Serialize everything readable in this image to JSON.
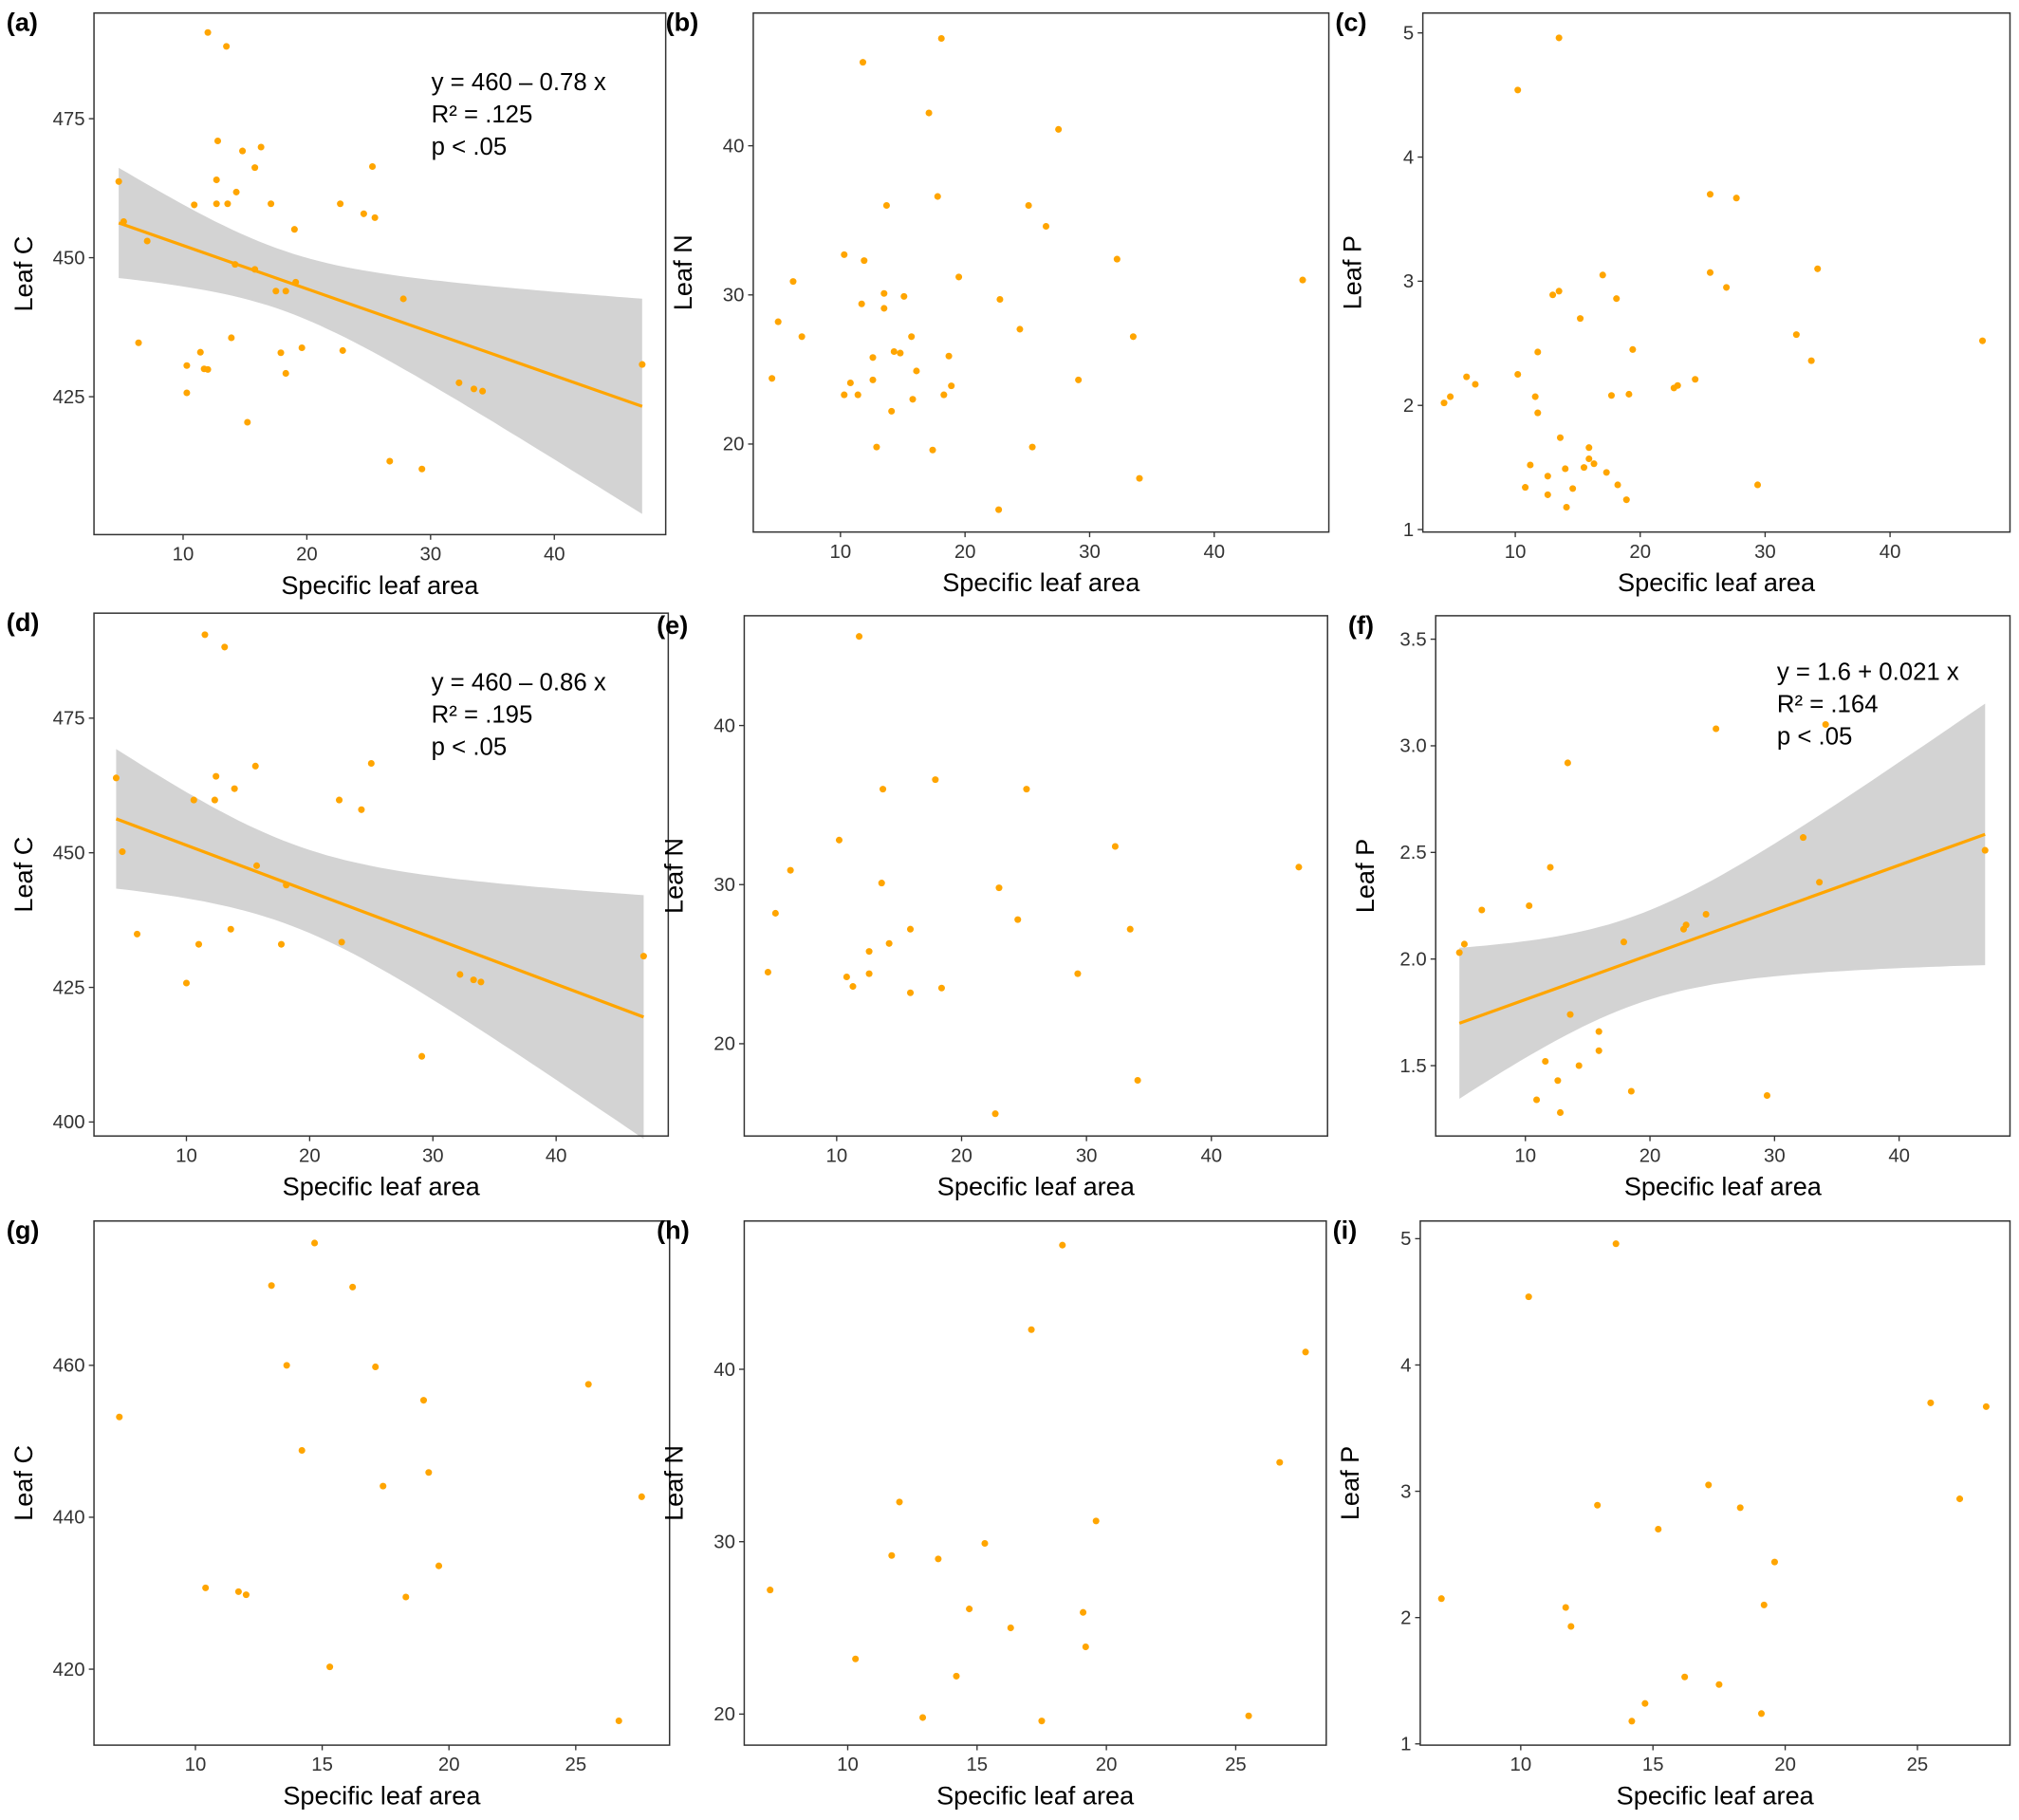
{
  "chart_data": [
    {
      "panel_label": "(a)",
      "type": "scatter",
      "xlabel": "Specific leaf area",
      "ylabel": "Leaf C",
      "xlim": [
        2.8,
        49
      ],
      "ylim": [
        400.2,
        494
      ],
      "xticks": [
        "10",
        "20",
        "30",
        "40"
      ],
      "yticks": [
        "425",
        "450",
        "475"
      ],
      "grid": false,
      "point_color": "#FFA500",
      "fit": {
        "intercept": 460,
        "slope": -0.78,
        "line_color": "#FFA500",
        "band_color": "#D3D3D3",
        "annotation": [
          "y = 460 – 0.78 x",
          "R² = .125",
          "p < .05"
        ]
      },
      "points": [
        [
          4.8,
          463.7
        ],
        [
          5.2,
          456.5
        ],
        [
          7.1,
          453
        ],
        [
          6.4,
          434.7
        ],
        [
          10.3,
          430.6
        ],
        [
          10.3,
          425.7
        ],
        [
          10.9,
          459.5
        ],
        [
          11.4,
          433
        ],
        [
          11.7,
          430
        ],
        [
          12,
          429.9
        ],
        [
          12,
          490.5
        ],
        [
          13.5,
          488
        ],
        [
          12.8,
          471
        ],
        [
          12.7,
          464
        ],
        [
          12.7,
          459.7
        ],
        [
          13.6,
          459.7
        ],
        [
          14.3,
          461.8
        ],
        [
          13.9,
          435.6
        ],
        [
          14.2,
          448.8
        ],
        [
          14.8,
          469.2
        ],
        [
          15.2,
          420.4
        ],
        [
          15.8,
          466.2
        ],
        [
          16.3,
          469.9
        ],
        [
          15.8,
          447.9
        ],
        [
          17.1,
          459.7
        ],
        [
          17.5,
          444
        ],
        [
          18.3,
          444
        ],
        [
          17.9,
          432.9
        ],
        [
          18.3,
          429.2
        ],
        [
          19,
          455.1
        ],
        [
          19.1,
          445.6
        ],
        [
          19.6,
          433.8
        ],
        [
          22.7,
          459.7
        ],
        [
          22.9,
          433.3
        ],
        [
          24.6,
          457.9
        ],
        [
          25.3,
          466.4
        ],
        [
          25.5,
          457.2
        ],
        [
          26.7,
          413.4
        ],
        [
          27.8,
          442.6
        ],
        [
          29.3,
          412
        ],
        [
          32.3,
          427.5
        ],
        [
          33.5,
          426.4
        ],
        [
          34.2,
          426
        ],
        [
          47.1,
          430.8
        ]
      ]
    },
    {
      "panel_label": "(b)",
      "type": "scatter",
      "xlabel": "Specific leaf area",
      "ylabel": "Leaf N",
      "xlim": [
        3,
        49.2
      ],
      "ylim": [
        14.1,
        48.9
      ],
      "xticks": [
        "10",
        "20",
        "30",
        "40"
      ],
      "yticks": [
        "20",
        "30",
        "40"
      ],
      "grid": false,
      "point_color": "#FFA500",
      "points": [
        [
          4.5,
          24.4
        ],
        [
          5,
          28.2
        ],
        [
          6.2,
          30.9
        ],
        [
          6.9,
          27.2
        ],
        [
          10.3,
          32.7
        ],
        [
          10.3,
          23.3
        ],
        [
          10.8,
          24.1
        ],
        [
          11.4,
          23.3
        ],
        [
          11.7,
          29.4
        ],
        [
          11.9,
          32.3
        ],
        [
          11.8,
          45.6
        ],
        [
          12.6,
          25.8
        ],
        [
          12.6,
          24.3
        ],
        [
          12.9,
          19.8
        ],
        [
          13.5,
          30.1
        ],
        [
          13.5,
          29.1
        ],
        [
          13.7,
          36
        ],
        [
          14.1,
          22.2
        ],
        [
          14.3,
          26.2
        ],
        [
          14.8,
          26.1
        ],
        [
          15.1,
          29.9
        ],
        [
          15.7,
          27.2
        ],
        [
          15.8,
          23
        ],
        [
          16.1,
          24.9
        ],
        [
          17.1,
          42.2
        ],
        [
          17.4,
          19.6
        ],
        [
          17.8,
          36.6
        ],
        [
          18.1,
          47.2
        ],
        [
          18.3,
          23.3
        ],
        [
          18.7,
          25.9
        ],
        [
          18.9,
          23.9
        ],
        [
          19.5,
          31.2
        ],
        [
          22.8,
          29.7
        ],
        [
          22.7,
          15.6
        ],
        [
          24.4,
          27.7
        ],
        [
          25.1,
          36
        ],
        [
          25.4,
          19.8
        ],
        [
          26.5,
          34.6
        ],
        [
          27.5,
          41.1
        ],
        [
          29.1,
          24.3
        ],
        [
          32.2,
          32.4
        ],
        [
          33.5,
          27.2
        ],
        [
          34,
          17.7
        ],
        [
          47.1,
          31
        ]
      ]
    },
    {
      "panel_label": "(c)",
      "type": "scatter",
      "xlabel": "Specific leaf area",
      "ylabel": "Leaf P",
      "xlim": [
        2.6,
        49.6
      ],
      "ylim": [
        0.98,
        5.16
      ],
      "xticks": [
        "10",
        "20",
        "30",
        "40"
      ],
      "yticks": [
        "1",
        "2",
        "3",
        "4",
        "5"
      ],
      "grid": false,
      "point_color": "#FFA500",
      "points": [
        [
          4.3,
          2.02
        ],
        [
          4.8,
          2.07
        ],
        [
          6.1,
          2.23
        ],
        [
          6.8,
          2.17
        ],
        [
          10.2,
          2.25
        ],
        [
          10.8,
          1.34
        ],
        [
          10.2,
          4.54
        ],
        [
          11.2,
          1.52
        ],
        [
          11.6,
          2.07
        ],
        [
          11.8,
          2.43
        ],
        [
          11.8,
          1.94
        ],
        [
          12.6,
          1.43
        ],
        [
          12.6,
          1.28
        ],
        [
          13,
          2.89
        ],
        [
          13.5,
          2.92
        ],
        [
          13.6,
          1.74
        ],
        [
          13.5,
          4.96
        ],
        [
          14,
          1.49
        ],
        [
          14.1,
          1.18
        ],
        [
          14.6,
          1.33
        ],
        [
          15.2,
          2.7
        ],
        [
          15.5,
          1.5
        ],
        [
          15.9,
          1.66
        ],
        [
          15.9,
          1.57
        ],
        [
          16.3,
          1.53
        ],
        [
          17,
          3.05
        ],
        [
          17.3,
          1.46
        ],
        [
          17.7,
          2.08
        ],
        [
          18.1,
          2.86
        ],
        [
          18.2,
          1.36
        ],
        [
          18.9,
          1.24
        ],
        [
          19.1,
          2.09
        ],
        [
          19.4,
          2.45
        ],
        [
          22.7,
          2.14
        ],
        [
          23,
          2.16
        ],
        [
          24.4,
          2.21
        ],
        [
          25.6,
          3.07
        ],
        [
          25.6,
          3.7
        ],
        [
          26.9,
          2.95
        ],
        [
          27.7,
          3.67
        ],
        [
          29.4,
          1.36
        ],
        [
          32.5,
          2.57
        ],
        [
          33.7,
          2.36
        ],
        [
          34.2,
          3.1
        ],
        [
          47.4,
          2.52
        ]
      ]
    },
    {
      "panel_label": "(d)",
      "type": "scatter",
      "xlabel": "Specific leaf area",
      "ylabel": "Leaf C",
      "xlim": [
        2.5,
        49.1
      ],
      "ylim": [
        397.4,
        494.5
      ],
      "xticks": [
        "10",
        "20",
        "30",
        "40"
      ],
      "yticks": [
        "400",
        "425",
        "450",
        "475"
      ],
      "grid": false,
      "point_color": "#FFA500",
      "fit": {
        "intercept": 460,
        "slope": -0.86,
        "line_color": "#FFA500",
        "band_color": "#D3D3D3",
        "annotation": [
          "y = 460 – 0.86 x",
          "R² = .195",
          "p < .05"
        ]
      },
      "points": [
        [
          4.3,
          463.9
        ],
        [
          4.8,
          450.2
        ],
        [
          6,
          434.9
        ],
        [
          10,
          425.8
        ],
        [
          10.6,
          459.8
        ],
        [
          11,
          433
        ],
        [
          11.5,
          490.5
        ],
        [
          12.4,
          464.2
        ],
        [
          12.3,
          459.8
        ],
        [
          13.1,
          488.2
        ],
        [
          13.6,
          435.8
        ],
        [
          13.9,
          461.9
        ],
        [
          15.6,
          466.1
        ],
        [
          15.7,
          447.6
        ],
        [
          18.1,
          444
        ],
        [
          17.7,
          433
        ],
        [
          22.4,
          459.8
        ],
        [
          22.6,
          433.4
        ],
        [
          24.2,
          458
        ],
        [
          25,
          466.6
        ],
        [
          29.1,
          412.2
        ],
        [
          32.2,
          427.4
        ],
        [
          33.3,
          426.4
        ],
        [
          33.9,
          426
        ],
        [
          47.1,
          430.8
        ]
      ]
    },
    {
      "panel_label": "(e)",
      "type": "scatter",
      "xlabel": "Specific leaf area",
      "ylabel": "Leaf N",
      "xlim": [
        2.6,
        49.3
      ],
      "ylim": [
        14.2,
        46.9
      ],
      "xticks": [
        "10",
        "20",
        "30",
        "40"
      ],
      "yticks": [
        "20",
        "30",
        "40"
      ],
      "grid": false,
      "point_color": "#FFA500",
      "points": [
        [
          4.5,
          24.5
        ],
        [
          5.1,
          28.2
        ],
        [
          6.3,
          30.9
        ],
        [
          10.2,
          32.8
        ],
        [
          10.8,
          24.2
        ],
        [
          11.3,
          23.6
        ],
        [
          11.8,
          45.6
        ],
        [
          12.6,
          25.8
        ],
        [
          12.6,
          24.4
        ],
        [
          13.6,
          30.1
        ],
        [
          13.7,
          36
        ],
        [
          14.2,
          26.3
        ],
        [
          15.9,
          27.2
        ],
        [
          15.9,
          23.2
        ],
        [
          17.9,
          36.6
        ],
        [
          18.4,
          23.5
        ],
        [
          23,
          29.8
        ],
        [
          22.7,
          15.6
        ],
        [
          24.5,
          27.8
        ],
        [
          25.2,
          36
        ],
        [
          29.3,
          24.4
        ],
        [
          32.3,
          32.4
        ],
        [
          33.5,
          27.2
        ],
        [
          34.1,
          17.7
        ],
        [
          47,
          31.1
        ]
      ]
    },
    {
      "panel_label": "(f)",
      "type": "scatter",
      "xlabel": "Specific leaf area",
      "ylabel": "Leaf P",
      "xlim": [
        2.8,
        48.9
      ],
      "ylim": [
        1.17,
        3.61
      ],
      "xticks": [
        "10",
        "20",
        "30",
        "40"
      ],
      "yticks": [
        "1.5",
        "2.0",
        "2.5",
        "3.0",
        "3.5"
      ],
      "grid": false,
      "point_color": "#FFA500",
      "fit": {
        "intercept": 1.6,
        "slope": 0.021,
        "line_color": "#FFA500",
        "band_color": "#D3D3D3",
        "annotation": [
          "y = 1.6 + 0.021 x",
          "R² = .164",
          "p < .05"
        ]
      },
      "points": [
        [
          4.7,
          2.03
        ],
        [
          5.1,
          2.07
        ],
        [
          6.5,
          2.23
        ],
        [
          10.3,
          2.25
        ],
        [
          10.9,
          1.34
        ],
        [
          11.6,
          1.52
        ],
        [
          12,
          2.43
        ],
        [
          12.6,
          1.43
        ],
        [
          12.8,
          1.28
        ],
        [
          13.4,
          2.92
        ],
        [
          13.6,
          1.74
        ],
        [
          14.3,
          1.5
        ],
        [
          15.9,
          1.66
        ],
        [
          15.9,
          1.57
        ],
        [
          17.9,
          2.08
        ],
        [
          18.5,
          1.38
        ],
        [
          22.7,
          2.14
        ],
        [
          22.9,
          2.16
        ],
        [
          24.5,
          2.21
        ],
        [
          25.3,
          3.08
        ],
        [
          29.4,
          1.36
        ],
        [
          32.3,
          2.57
        ],
        [
          33.6,
          2.36
        ],
        [
          34.1,
          3.1
        ],
        [
          46.9,
          2.51
        ]
      ]
    },
    {
      "panel_label": "(g)",
      "type": "scatter",
      "xlabel": "Specific leaf area",
      "ylabel": "Leaf C",
      "xlim": [
        6,
        28.7
      ],
      "ylim": [
        410,
        479
      ],
      "xticks": [
        "10",
        "15",
        "20",
        "25"
      ],
      "yticks": [
        "420",
        "440",
        "460"
      ],
      "grid": false,
      "point_color": "#FFA500",
      "points": [
        [
          7,
          453.2
        ],
        [
          10.4,
          430.7
        ],
        [
          11.7,
          430.2
        ],
        [
          12,
          429.8
        ],
        [
          13,
          470.5
        ],
        [
          13.6,
          460
        ],
        [
          14.2,
          448.8
        ],
        [
          14.7,
          476.1
        ],
        [
          15.3,
          420.3
        ],
        [
          16.2,
          470.3
        ],
        [
          17.1,
          459.8
        ],
        [
          17.4,
          444.1
        ],
        [
          18.3,
          429.5
        ],
        [
          19,
          455.4
        ],
        [
          19.2,
          445.9
        ],
        [
          19.6,
          433.6
        ],
        [
          25.5,
          457.5
        ],
        [
          26.7,
          413.2
        ],
        [
          27.6,
          442.7
        ]
      ]
    },
    {
      "panel_label": "(h)",
      "type": "scatter",
      "xlabel": "Specific leaf area",
      "ylabel": "Leaf N",
      "xlim": [
        6,
        28.5
      ],
      "ylim": [
        18.2,
        48.6
      ],
      "xticks": [
        "10",
        "15",
        "20",
        "25"
      ],
      "yticks": [
        "20",
        "30",
        "40"
      ],
      "grid": false,
      "point_color": "#FFA500",
      "points": [
        [
          7,
          27.2
        ],
        [
          10.3,
          23.2
        ],
        [
          11.7,
          29.2
        ],
        [
          12,
          32.3
        ],
        [
          12.9,
          19.8
        ],
        [
          13.5,
          29
        ],
        [
          14.2,
          22.2
        ],
        [
          14.7,
          26.1
        ],
        [
          15.3,
          29.9
        ],
        [
          16.3,
          25
        ],
        [
          17.1,
          42.3
        ],
        [
          17.5,
          19.6
        ],
        [
          18.3,
          47.2
        ],
        [
          19.1,
          25.9
        ],
        [
          19.2,
          23.9
        ],
        [
          19.6,
          31.2
        ],
        [
          25.5,
          19.9
        ],
        [
          26.7,
          34.6
        ],
        [
          27.7,
          41
        ]
      ]
    },
    {
      "panel_label": "(i)",
      "type": "scatter",
      "xlabel": "Specific leaf area",
      "ylabel": "Leaf P",
      "xlim": [
        6.2,
        28.5
      ],
      "ylim": [
        0.99,
        5.14
      ],
      "xticks": [
        "10",
        "15",
        "20",
        "25"
      ],
      "yticks": [
        "1",
        "2",
        "3",
        "4",
        "5"
      ],
      "grid": false,
      "point_color": "#FFA500",
      "points": [
        [
          7,
          2.15
        ],
        [
          10.3,
          4.54
        ],
        [
          11.7,
          2.08
        ],
        [
          11.9,
          1.93
        ],
        [
          12.9,
          2.89
        ],
        [
          13.6,
          4.96
        ],
        [
          14.2,
          1.18
        ],
        [
          14.7,
          1.32
        ],
        [
          15.2,
          2.7
        ],
        [
          16.2,
          1.53
        ],
        [
          17.1,
          3.05
        ],
        [
          17.5,
          1.47
        ],
        [
          18.3,
          2.87
        ],
        [
          19.1,
          1.24
        ],
        [
          19.2,
          2.1
        ],
        [
          19.6,
          2.44
        ],
        [
          25.5,
          3.7
        ],
        [
          26.6,
          2.94
        ],
        [
          27.6,
          3.67
        ]
      ]
    }
  ]
}
